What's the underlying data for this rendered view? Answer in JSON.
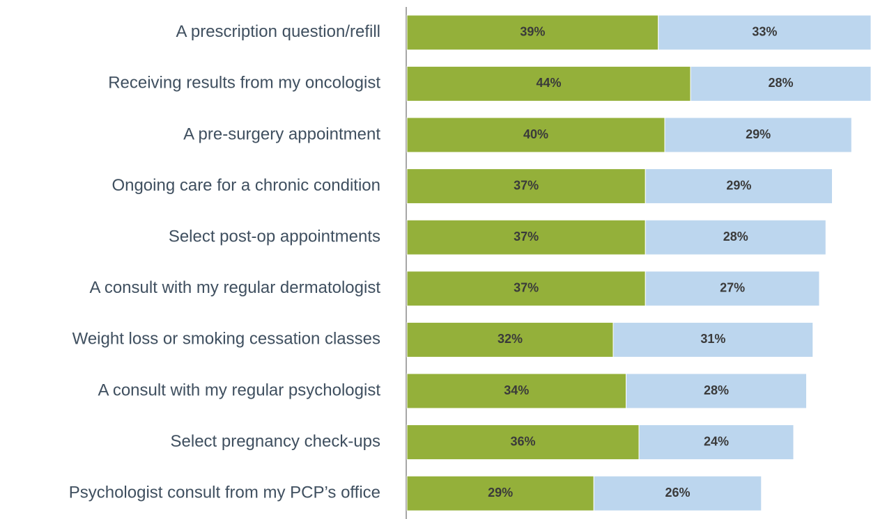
{
  "chart_data": {
    "type": "stacked-bar-horizontal",
    "categories": [
      "A prescription question/refill",
      "Receiving results from my oncologist",
      "A pre-surgery appointment",
      "Ongoing care for a chronic condition",
      "Select post-op appointments",
      "A consult with my regular dermatologist",
      "Weight loss or smoking cessation classes",
      "A consult with my regular psychologist",
      "Select pregnancy check-ups",
      "Psychologist consult from my PCP’s office"
    ],
    "series": [
      {
        "color": "#94b03a",
        "values": [
          39,
          44,
          40,
          37,
          37,
          37,
          32,
          34,
          36,
          29
        ],
        "value_labels": [
          "39%",
          "44%",
          "40%",
          "37%",
          "37%",
          "37%",
          "32%",
          "34%",
          "36%",
          "29%"
        ]
      },
      {
        "color": "#bcd6ee",
        "values": [
          33,
          28,
          29,
          29,
          28,
          27,
          31,
          28,
          24,
          26
        ],
        "value_labels": [
          "33%",
          "28%",
          "29%",
          "29%",
          "28%",
          "27%",
          "31%",
          "28%",
          "24%",
          "26%"
        ]
      }
    ],
    "xlim": [
      0,
      72
    ]
  }
}
